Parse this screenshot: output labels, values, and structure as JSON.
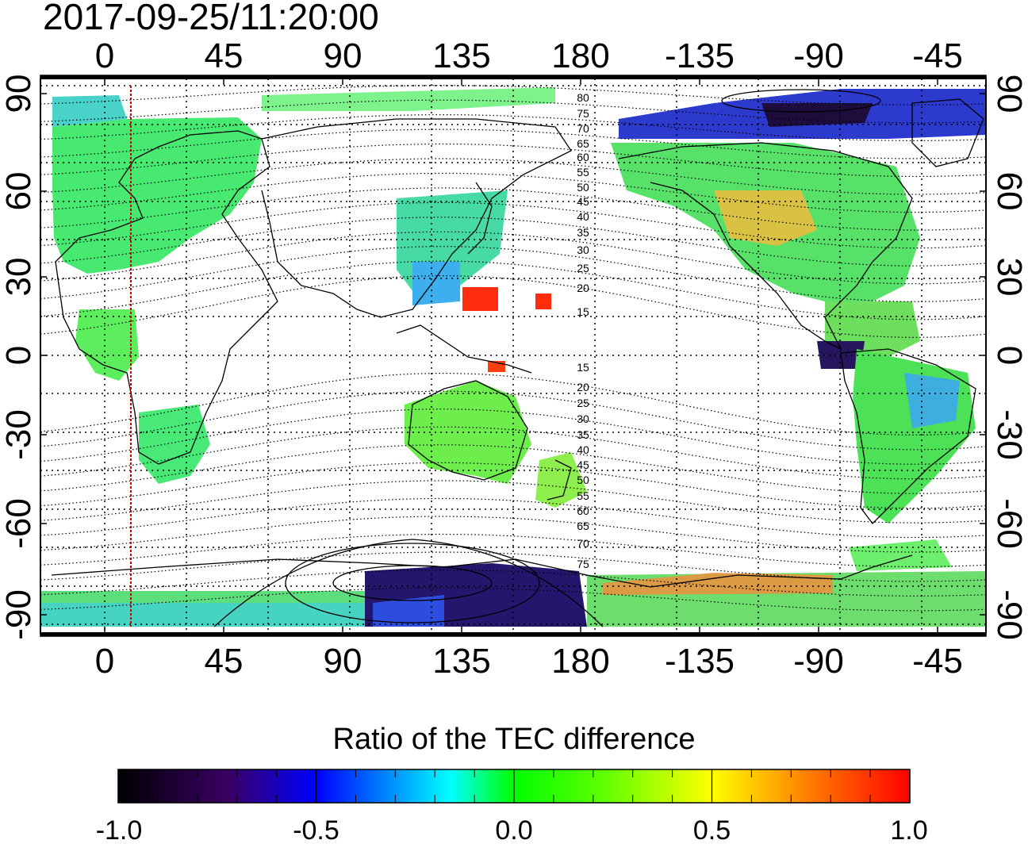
{
  "timestamp": "2017-09-25/11:20:00",
  "lon_tick_labels_top": [
    "0",
    "45",
    "90",
    "135",
    "180",
    "-135",
    "-90",
    "-45"
  ],
  "lon_tick_labels_bottom": [
    "0",
    "45",
    "90",
    "135",
    "180",
    "-135",
    "-90",
    "-45"
  ],
  "lat_tick_labels_left": [
    "90",
    "60",
    "30",
    "0",
    "-30",
    "-60",
    "-90"
  ],
  "lat_tick_labels_right": [
    "90",
    "60",
    "30",
    "0",
    "-30",
    "-60",
    "-90"
  ],
  "magnetic_lat_labels_north": [
    "80",
    "75",
    "70",
    "65",
    "60",
    "55",
    "50",
    "45",
    "40",
    "35",
    "30",
    "25",
    "20",
    "15"
  ],
  "magnetic_lat_labels_south": [
    "15",
    "20",
    "25",
    "30",
    "35",
    "40",
    "45",
    "50",
    "55",
    "60",
    "65",
    "70",
    "75"
  ],
  "terminator_longitude": 10,
  "colorbar": {
    "title": "Ratio of the TEC difference",
    "ticks": [
      "-1.0",
      "-0.5",
      "0.0",
      "0.5",
      "1.0"
    ],
    "min": -1.0,
    "max": 1.0,
    "colors": [
      "#000000",
      "#3a0066",
      "#0000ff",
      "#00ffff",
      "#00ff00",
      "#ffff00",
      "#ff8000",
      "#ff0000"
    ]
  },
  "colors": {
    "frame": "#000000",
    "coastline": "#000000",
    "grid": "#000000",
    "terminator": "#cc0000"
  }
}
